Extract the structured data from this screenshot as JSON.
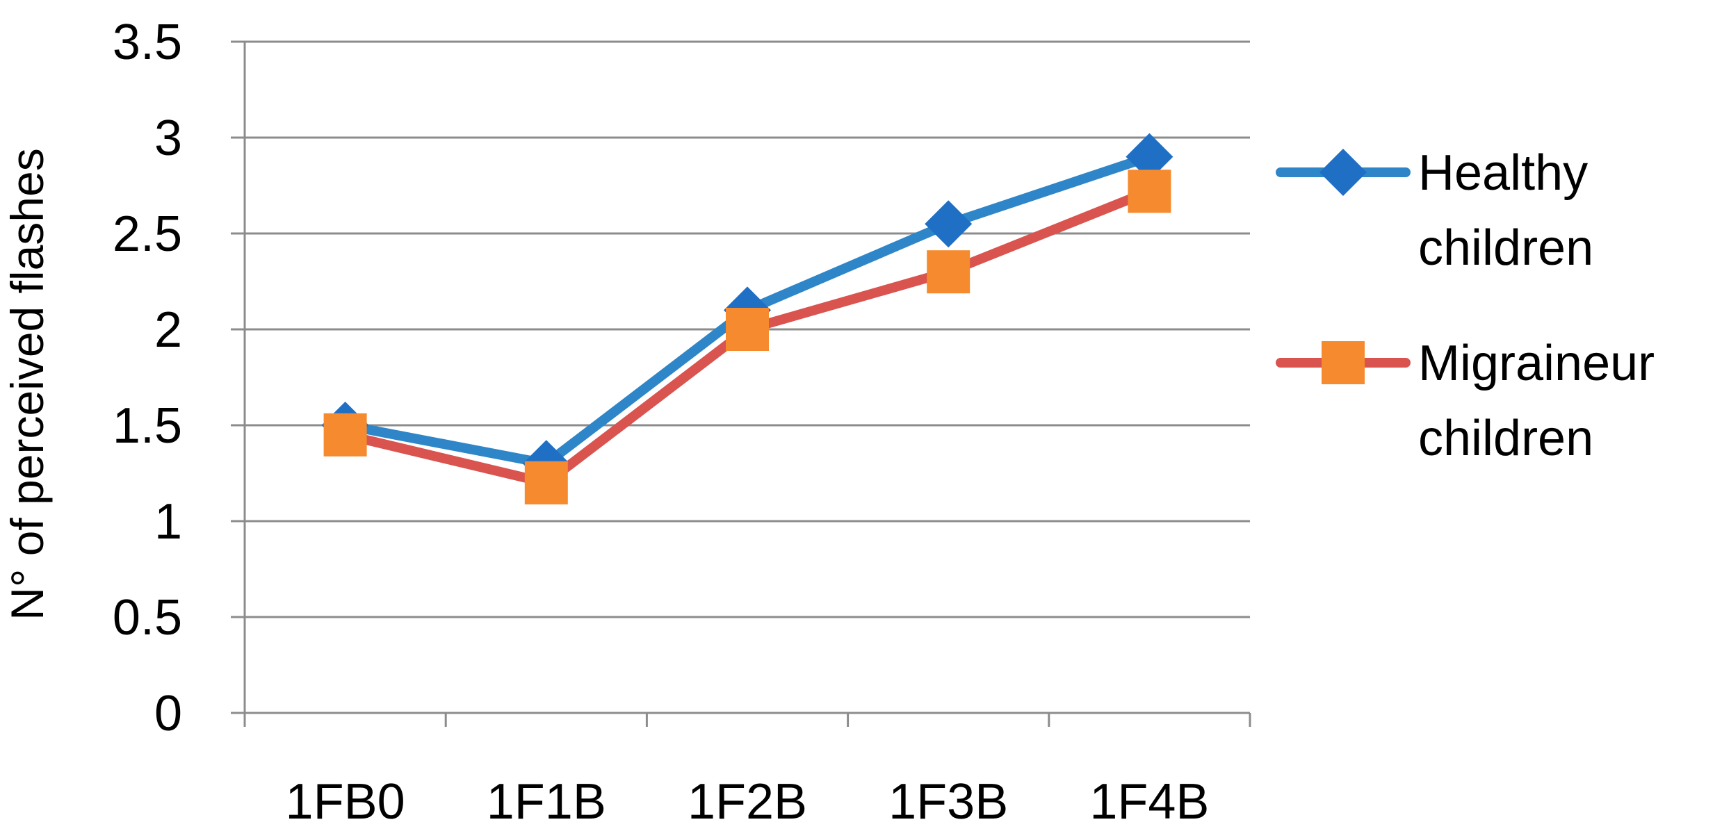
{
  "chart_data": {
    "type": "line",
    "title": "",
    "xlabel": "",
    "ylabel": "N° of perceived flashes",
    "categories": [
      "1FB0",
      "1F1B",
      "1F2B",
      "1F3B",
      "1F4B"
    ],
    "ylim": [
      0,
      3.5
    ],
    "yticks": [
      "0",
      "0.5",
      "1",
      "1.5",
      "2",
      "2.5",
      "3",
      "3.5"
    ],
    "grid": "horizontal",
    "legend": "right",
    "series": [
      {
        "name": "Healthy children",
        "name_lines": [
          "Healthy",
          "children"
        ],
        "values": [
          1.5,
          1.3,
          2.1,
          2.55,
          2.9
        ],
        "line_color": "#2e86c8",
        "marker_color": "#1f6fc5",
        "marker": "diamond"
      },
      {
        "name": "Migraineur children",
        "name_lines": [
          "Migraineur",
          "children"
        ],
        "values": [
          1.45,
          1.2,
          2.0,
          2.3,
          2.72
        ],
        "line_color": "#d9534f",
        "marker_color": "#f58a2f",
        "marker": "square"
      }
    ]
  }
}
